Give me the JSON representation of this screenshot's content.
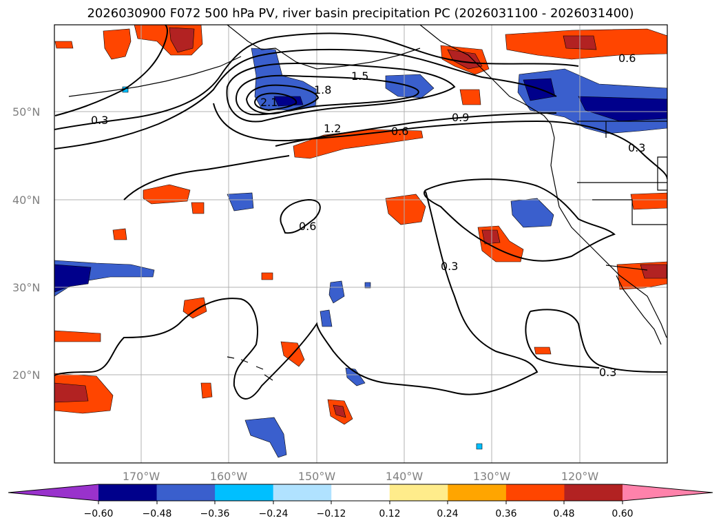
{
  "title": "2026030900 F072 500 hPa PV, river basin precipitation PC (2026031100 - 2026031400)",
  "map": {
    "lon_ticks": [
      "170°W",
      "160°W",
      "150°W",
      "140°W",
      "130°W",
      "120°W"
    ],
    "lat_ticks": [
      "50°N",
      "40°N",
      "30°N",
      "20°N"
    ],
    "contour_labels": [
      "0.3",
      "1.5",
      "1.8",
      "2.1",
      "1.2",
      "0.6",
      "0.9",
      "0.6",
      "0.3",
      "0.6",
      "0.3",
      "0.3"
    ]
  },
  "colorbar": {
    "colors": [
      "#9932cc",
      "#00008b",
      "#3a5fcd",
      "#00bfff",
      "#b0e2ff",
      "#ffffff",
      "#ffec8b",
      "#ffa500",
      "#ff4500",
      "#b22222",
      "#ff82ab"
    ],
    "ticks": [
      "−0.60",
      "−0.48",
      "−0.36",
      "−0.24",
      "−0.12",
      "0.12",
      "0.24",
      "0.36",
      "0.48",
      "0.60"
    ]
  }
}
